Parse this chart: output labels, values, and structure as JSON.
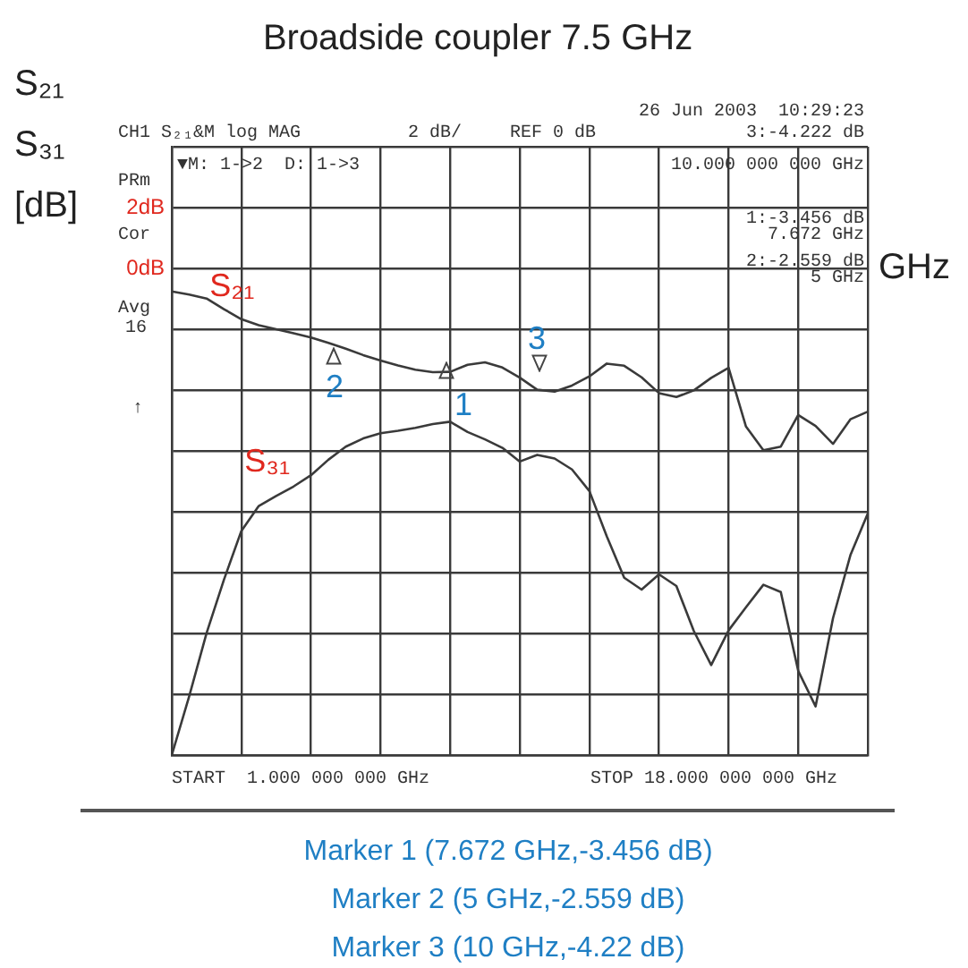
{
  "chart_data": {
    "type": "line",
    "title": "Broadside coupler 7.5 GHz",
    "ylabel": "S₂₁ S₃₁ [dB]",
    "xlabel": "GHz",
    "categories": [
      null,
      null,
      null,
      null,
      null,
      null,
      null,
      null,
      null,
      null,
      null,
      null,
      null,
      null,
      null,
      null,
      null,
      null,
      null,
      null,
      null,
      null,
      null,
      null,
      null,
      null,
      null,
      null,
      null,
      null,
      null,
      null,
      null,
      null,
      null,
      null,
      null,
      null,
      null,
      null,
      null
    ],
    "series": [
      {
        "name": "S₂₁",
        "color": "#3a3a3a",
        "values": [
          -0.76,
          -0.86,
          -0.99,
          -1.34,
          -1.67,
          -1.87,
          -2.0,
          -2.13,
          -2.27,
          -2.45,
          -2.64,
          -2.85,
          -3.03,
          -3.19,
          -3.33,
          -3.41,
          -3.4,
          -3.17,
          -3.09,
          -3.26,
          -3.59,
          -3.99,
          -4.05,
          -3.85,
          -3.55,
          -3.13,
          -3.2,
          -3.58,
          -4.1,
          -4.23,
          -4.01,
          -3.6,
          -3.27,
          -5.2,
          -5.98,
          -5.86,
          -4.82,
          -5.18,
          -5.77,
          -4.96,
          -4.71
        ]
      },
      {
        "name": "S₃₁",
        "color": "#3a3a3a",
        "values": [
          -16.0,
          -14.07,
          -11.99,
          -10.23,
          -8.63,
          -7.81,
          -7.48,
          -7.17,
          -6.8,
          -6.29,
          -5.86,
          -5.59,
          -5.42,
          -5.34,
          -5.24,
          -5.12,
          -5.04,
          -5.38,
          -5.62,
          -5.9,
          -6.35,
          -6.13,
          -6.25,
          -6.61,
          -7.32,
          -8.81,
          -10.17,
          -10.56,
          -10.06,
          -10.44,
          -11.92,
          -13.04,
          -11.9,
          -11.14,
          -10.4,
          -10.64,
          -13.23,
          -14.4,
          -11.5,
          -9.43,
          -8.06
        ]
      }
    ],
    "ylim": [
      -16,
      4
    ],
    "yticks": [
      {
        "value": -16,
        "label": null
      },
      {
        "value": -14,
        "label": null
      },
      {
        "value": -12,
        "label": null
      },
      {
        "value": -10,
        "label": null
      },
      {
        "value": -8,
        "label": null
      },
      {
        "value": -6,
        "label": null
      },
      {
        "value": -4,
        "label": null
      },
      {
        "value": -2,
        "label": null
      },
      {
        "value": 0,
        "label": "0dB"
      },
      {
        "value": 2,
        "label": "2dB"
      },
      {
        "value": 4,
        "label": null
      }
    ],
    "tick_labels": "y",
    "grid": true,
    "marker": "none",
    "annotations": [
      "26 Jun 2003  10:29:23",
      "CH1 S₂₁&M log MAG",
      "2 dB/",
      "REF 0 dB",
      "3:-4.222 dB",
      "▼M: 1->2  D: 1->3",
      "10.000 000 000 GHz",
      "1:-3.456 dB",
      "7.672 GHz",
      "2:-2.559 dB",
      "5 GHz",
      "PRm",
      "Cor",
      "Avg",
      "16",
      "↑",
      "START  1.000 000 000 GHz",
      "STOP 18.000 000 000 GHz",
      "Marker 1 (7.672 GHz,-3.456 dB)",
      "Marker 2 (5 GHz,-2.559 dB)",
      "Marker 3 (10 GHz,-4.22 dB)",
      "1",
      "2",
      "3"
    ]
  }
}
